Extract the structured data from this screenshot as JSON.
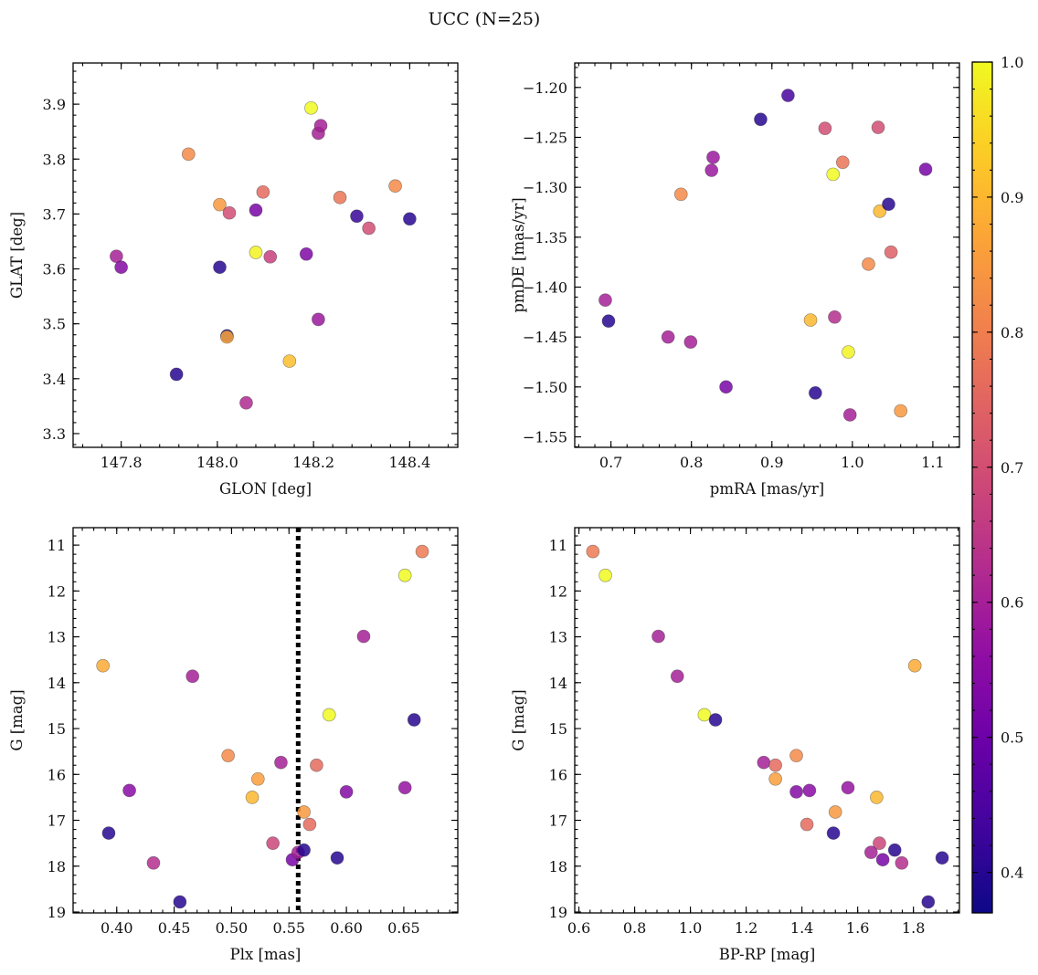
{
  "title": "UCC (N=25)",
  "colorbar": {
    "min": 0.37,
    "max": 1.0,
    "ticks": [
      "0.4",
      "0.5",
      "0.6",
      "0.7",
      "0.8",
      "0.9",
      "1.0"
    ],
    "colormap": "plasma"
  },
  "chart_data": [
    {
      "type": "scatter",
      "xlabel": "GLON [deg]",
      "ylabel": "GLAT [deg]",
      "xlim": [
        147.7,
        148.5
      ],
      "ylim": [
        3.275,
        3.975
      ],
      "xticks": [
        "147.8",
        "148.0",
        "148.2",
        "148.4"
      ],
      "yticks": [
        "3.3",
        "3.4",
        "3.5",
        "3.6",
        "3.7",
        "3.8",
        "3.9"
      ],
      "points": [
        {
          "x": 147.79,
          "y": 3.623,
          "c": 0.6
        },
        {
          "x": 147.8,
          "y": 3.603,
          "c": 0.54
        },
        {
          "x": 147.915,
          "y": 3.408,
          "c": 0.4
        },
        {
          "x": 147.94,
          "y": 3.809,
          "c": 0.82
        },
        {
          "x": 148.005,
          "y": 3.603,
          "c": 0.4
        },
        {
          "x": 148.005,
          "y": 3.717,
          "c": 0.85
        },
        {
          "x": 148.02,
          "y": 3.478,
          "c": 0.38
        },
        {
          "x": 148.02,
          "y": 3.476,
          "c": 0.87
        },
        {
          "x": 148.025,
          "y": 3.702,
          "c": 0.7
        },
        {
          "x": 148.06,
          "y": 3.356,
          "c": 0.62
        },
        {
          "x": 148.08,
          "y": 3.707,
          "c": 0.52
        },
        {
          "x": 148.08,
          "y": 3.63,
          "c": 0.99
        },
        {
          "x": 148.095,
          "y": 3.74,
          "c": 0.76
        },
        {
          "x": 148.11,
          "y": 3.622,
          "c": 0.67
        },
        {
          "x": 148.15,
          "y": 3.432,
          "c": 0.91
        },
        {
          "x": 148.185,
          "y": 3.627,
          "c": 0.53
        },
        {
          "x": 148.195,
          "y": 3.893,
          "c": 1.0
        },
        {
          "x": 148.21,
          "y": 3.847,
          "c": 0.6
        },
        {
          "x": 148.21,
          "y": 3.508,
          "c": 0.58
        },
        {
          "x": 148.215,
          "y": 3.861,
          "c": 0.6
        },
        {
          "x": 148.255,
          "y": 3.73,
          "c": 0.78
        },
        {
          "x": 148.29,
          "y": 3.696,
          "c": 0.42
        },
        {
          "x": 148.315,
          "y": 3.674,
          "c": 0.7
        },
        {
          "x": 148.37,
          "y": 3.751,
          "c": 0.82
        },
        {
          "x": 148.4,
          "y": 3.691,
          "c": 0.4
        }
      ]
    },
    {
      "type": "scatter",
      "xlabel": "pmRA [mas/yr]",
      "ylabel": "pmDE [mas/yr]",
      "xlim": [
        0.655,
        1.133
      ],
      "ylim": [
        -1.5605,
        -1.1755
      ],
      "xticks": [
        "0.7",
        "0.8",
        "0.9",
        "1.0",
        "1.1"
      ],
      "yticks": [
        "−1.20",
        "−1.25",
        "−1.30",
        "−1.35",
        "−1.40",
        "−1.45",
        "−1.50",
        "−1.55"
      ],
      "points": [
        {
          "x": 0.693,
          "y": -1.413,
          "c": 0.6
        },
        {
          "x": 0.697,
          "y": -1.434,
          "c": 0.4
        },
        {
          "x": 0.771,
          "y": -1.45,
          "c": 0.6
        },
        {
          "x": 0.787,
          "y": -1.307,
          "c": 0.82
        },
        {
          "x": 0.799,
          "y": -1.455,
          "c": 0.6
        },
        {
          "x": 0.825,
          "y": -1.283,
          "c": 0.58
        },
        {
          "x": 0.827,
          "y": -1.27,
          "c": 0.58
        },
        {
          "x": 0.843,
          "y": -1.5,
          "c": 0.52
        },
        {
          "x": 0.886,
          "y": -1.232,
          "c": 0.4
        },
        {
          "x": 0.92,
          "y": -1.208,
          "c": 0.44
        },
        {
          "x": 0.948,
          "y": -1.433,
          "c": 0.9
        },
        {
          "x": 0.954,
          "y": -1.506,
          "c": 0.4
        },
        {
          "x": 0.966,
          "y": -1.241,
          "c": 0.7
        },
        {
          "x": 0.976,
          "y": -1.287,
          "c": 1.0
        },
        {
          "x": 0.978,
          "y": -1.43,
          "c": 0.63
        },
        {
          "x": 0.988,
          "y": -1.275,
          "c": 0.78
        },
        {
          "x": 0.995,
          "y": -1.465,
          "c": 0.99
        },
        {
          "x": 0.997,
          "y": -1.528,
          "c": 0.6
        },
        {
          "x": 1.02,
          "y": -1.377,
          "c": 0.82
        },
        {
          "x": 1.032,
          "y": -1.24,
          "c": 0.7
        },
        {
          "x": 1.034,
          "y": -1.324,
          "c": 0.9
        },
        {
          "x": 1.045,
          "y": -1.317,
          "c": 0.4
        },
        {
          "x": 1.048,
          "y": -1.365,
          "c": 0.74
        },
        {
          "x": 1.06,
          "y": -1.524,
          "c": 0.85
        },
        {
          "x": 1.091,
          "y": -1.282,
          "c": 0.52
        }
      ]
    },
    {
      "type": "scatter",
      "xlabel": "Plx [mas]",
      "ylabel": "G [mag]",
      "xlim": [
        0.362,
        0.697
      ],
      "ylim": [
        19.02,
        10.62
      ],
      "xticks": [
        "0.40",
        "0.45",
        "0.50",
        "0.55",
        "0.60",
        "0.65"
      ],
      "yticks": [
        "11",
        "12",
        "13",
        "14",
        "15",
        "16",
        "17",
        "18",
        "19"
      ],
      "vline": 0.558,
      "points": [
        {
          "x": 0.388,
          "y": 13.63,
          "c": 0.88
        },
        {
          "x": 0.393,
          "y": 17.28,
          "c": 0.4
        },
        {
          "x": 0.411,
          "y": 16.35,
          "c": 0.55
        },
        {
          "x": 0.432,
          "y": 17.93,
          "c": 0.63
        },
        {
          "x": 0.455,
          "y": 18.78,
          "c": 0.4
        },
        {
          "x": 0.466,
          "y": 13.86,
          "c": 0.6
        },
        {
          "x": 0.497,
          "y": 15.59,
          "c": 0.82
        },
        {
          "x": 0.518,
          "y": 16.5,
          "c": 0.9
        },
        {
          "x": 0.523,
          "y": 16.1,
          "c": 0.86
        },
        {
          "x": 0.536,
          "y": 17.5,
          "c": 0.68
        },
        {
          "x": 0.543,
          "y": 15.74,
          "c": 0.6
        },
        {
          "x": 0.553,
          "y": 17.86,
          "c": 0.52
        },
        {
          "x": 0.558,
          "y": 17.7,
          "c": 0.6
        },
        {
          "x": 0.563,
          "y": 17.65,
          "c": 0.4
        },
        {
          "x": 0.563,
          "y": 16.82,
          "c": 0.85
        },
        {
          "x": 0.568,
          "y": 17.09,
          "c": 0.76
        },
        {
          "x": 0.574,
          "y": 15.8,
          "c": 0.76
        },
        {
          "x": 0.585,
          "y": 14.7,
          "c": 1.0
        },
        {
          "x": 0.592,
          "y": 17.82,
          "c": 0.4
        },
        {
          "x": 0.6,
          "y": 16.38,
          "c": 0.54
        },
        {
          "x": 0.615,
          "y": 12.99,
          "c": 0.6
        },
        {
          "x": 0.651,
          "y": 11.66,
          "c": 1.0
        },
        {
          "x": 0.651,
          "y": 16.29,
          "c": 0.57
        },
        {
          "x": 0.659,
          "y": 14.81,
          "c": 0.4
        },
        {
          "x": 0.666,
          "y": 11.14,
          "c": 0.79
        }
      ]
    },
    {
      "type": "scatter",
      "xlabel": "BP-RP [mag]",
      "ylabel": "G [mag]",
      "xlim": [
        0.585,
        1.965
      ],
      "ylim": [
        19.02,
        10.62
      ],
      "xticks": [
        "0.6",
        "0.8",
        "1.0",
        "1.2",
        "1.4",
        "1.6",
        "1.8"
      ],
      "yticks": [
        "11",
        "12",
        "13",
        "14",
        "15",
        "16",
        "17",
        "18",
        "19"
      ],
      "points": [
        {
          "x": 0.65,
          "y": 11.14,
          "c": 0.79
        },
        {
          "x": 0.695,
          "y": 11.66,
          "c": 1.0
        },
        {
          "x": 0.885,
          "y": 12.99,
          "c": 0.6
        },
        {
          "x": 0.953,
          "y": 13.86,
          "c": 0.6
        },
        {
          "x": 1.05,
          "y": 14.7,
          "c": 1.0
        },
        {
          "x": 1.09,
          "y": 14.81,
          "c": 0.4
        },
        {
          "x": 1.263,
          "y": 15.74,
          "c": 0.6
        },
        {
          "x": 1.305,
          "y": 15.8,
          "c": 0.76
        },
        {
          "x": 1.305,
          "y": 16.1,
          "c": 0.86
        },
        {
          "x": 1.38,
          "y": 15.59,
          "c": 0.82
        },
        {
          "x": 1.38,
          "y": 16.38,
          "c": 0.54
        },
        {
          "x": 1.427,
          "y": 16.35,
          "c": 0.55
        },
        {
          "x": 1.418,
          "y": 17.09,
          "c": 0.76
        },
        {
          "x": 1.513,
          "y": 17.28,
          "c": 0.4
        },
        {
          "x": 1.52,
          "y": 16.82,
          "c": 0.85
        },
        {
          "x": 1.565,
          "y": 16.29,
          "c": 0.57
        },
        {
          "x": 1.648,
          "y": 17.7,
          "c": 0.6
        },
        {
          "x": 1.668,
          "y": 16.5,
          "c": 0.9
        },
        {
          "x": 1.678,
          "y": 17.5,
          "c": 0.68
        },
        {
          "x": 1.69,
          "y": 17.86,
          "c": 0.52
        },
        {
          "x": 1.733,
          "y": 17.65,
          "c": 0.4
        },
        {
          "x": 1.758,
          "y": 17.93,
          "c": 0.63
        },
        {
          "x": 1.805,
          "y": 13.63,
          "c": 0.88
        },
        {
          "x": 1.853,
          "y": 18.78,
          "c": 0.4
        },
        {
          "x": 1.903,
          "y": 17.82,
          "c": 0.4
        }
      ]
    }
  ]
}
